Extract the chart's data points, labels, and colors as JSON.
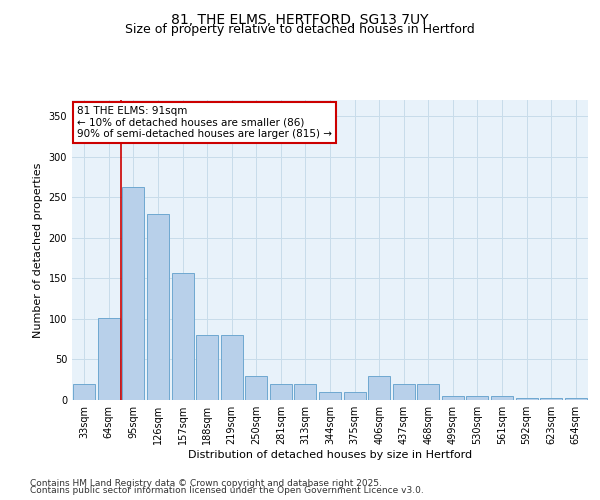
{
  "title1": "81, THE ELMS, HERTFORD, SG13 7UY",
  "title2": "Size of property relative to detached houses in Hertford",
  "xlabel": "Distribution of detached houses by size in Hertford",
  "ylabel": "Number of detached properties",
  "categories": [
    "33sqm",
    "64sqm",
    "95sqm",
    "126sqm",
    "157sqm",
    "188sqm",
    "219sqm",
    "250sqm",
    "281sqm",
    "313sqm",
    "344sqm",
    "375sqm",
    "406sqm",
    "437sqm",
    "468sqm",
    "499sqm",
    "530sqm",
    "561sqm",
    "592sqm",
    "623sqm",
    "654sqm"
  ],
  "values": [
    20,
    101,
    263,
    230,
    157,
    80,
    80,
    30,
    20,
    20,
    10,
    10,
    30,
    20,
    20,
    5,
    5,
    5,
    2,
    2,
    2
  ],
  "bar_color": "#b8d0ea",
  "bar_edge_color": "#6fa8d0",
  "annotation_text": "81 THE ELMS: 91sqm\n← 10% of detached houses are smaller (86)\n90% of semi-detached houses are larger (815) →",
  "annotation_box_color": "#ffffff",
  "annotation_box_edge": "#cc0000",
  "vline_color": "#cc0000",
  "vline_x_index": 2,
  "ylim": [
    0,
    370
  ],
  "yticks": [
    0,
    50,
    100,
    150,
    200,
    250,
    300,
    350
  ],
  "grid_color": "#c8dcea",
  "background_color": "#e8f2fa",
  "footer1": "Contains HM Land Registry data © Crown copyright and database right 2025.",
  "footer2": "Contains public sector information licensed under the Open Government Licence v3.0.",
  "title_fontsize": 10,
  "subtitle_fontsize": 9,
  "label_fontsize": 8,
  "tick_fontsize": 7,
  "annotation_fontsize": 7.5,
  "footer_fontsize": 6.5
}
